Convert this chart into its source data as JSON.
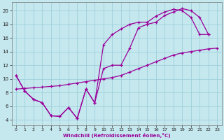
{
  "xlabel": "Windchill (Refroidissement éolien,°C)",
  "background_color": "#c5e8ef",
  "grid_color": "#9ecfda",
  "line_color": "#990099",
  "xlim": [
    -0.5,
    23.5
  ],
  "ylim": [
    3.2,
    21.2
  ],
  "xticks": [
    0,
    1,
    2,
    3,
    4,
    5,
    6,
    7,
    8,
    9,
    10,
    11,
    12,
    13,
    14,
    15,
    16,
    17,
    18,
    19,
    20,
    21,
    22,
    23
  ],
  "yticks": [
    4,
    6,
    8,
    10,
    12,
    14,
    16,
    18,
    20
  ],
  "line1_x": [
    0,
    1,
    2,
    3,
    4,
    5,
    6,
    7,
    8,
    9,
    10,
    11,
    12,
    13,
    14,
    15,
    16,
    17,
    18,
    19,
    20,
    21,
    22
  ],
  "line1_y": [
    10.5,
    8.2,
    7.0,
    6.5,
    4.6,
    4.5,
    5.8,
    4.2,
    8.5,
    6.5,
    11.5,
    12.0,
    12.0,
    14.5,
    17.5,
    18.0,
    18.3,
    19.3,
    19.8,
    20.3,
    20.0,
    19.0,
    16.5
  ],
  "line2_x": [
    0,
    1,
    2,
    3,
    4,
    5,
    6,
    7,
    8,
    9,
    10,
    11,
    12,
    13,
    14,
    15,
    16,
    17,
    18,
    19,
    20,
    21,
    22
  ],
  "line2_y": [
    10.5,
    8.2,
    7.0,
    6.5,
    4.6,
    4.5,
    5.8,
    4.2,
    8.5,
    6.5,
    15.0,
    16.5,
    17.3,
    18.0,
    18.3,
    18.3,
    19.2,
    19.8,
    20.2,
    20.0,
    19.0,
    16.5,
    16.5
  ],
  "line3_x": [
    0,
    1,
    2,
    3,
    4,
    5,
    6,
    7,
    8,
    9,
    10,
    11,
    12,
    13,
    14,
    15,
    16,
    17,
    18,
    19,
    20,
    21,
    22,
    23
  ],
  "line3_y": [
    8.5,
    8.6,
    8.7,
    8.8,
    8.9,
    9.0,
    9.2,
    9.4,
    9.6,
    9.8,
    10.0,
    10.2,
    10.5,
    11.0,
    11.5,
    12.0,
    12.5,
    13.0,
    13.5,
    13.8,
    14.0,
    14.2,
    14.4,
    14.5
  ]
}
